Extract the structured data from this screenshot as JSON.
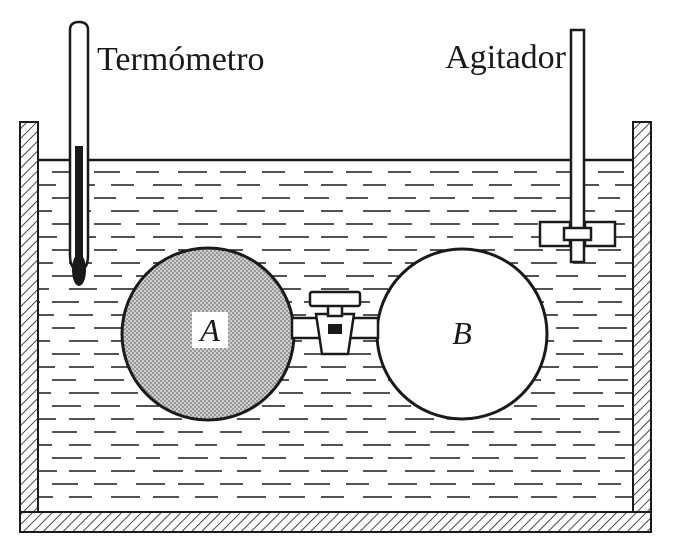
{
  "labels": {
    "thermometer": "Termómetro",
    "stirrer": "Agitador",
    "bulb_a": "A",
    "bulb_b": "B"
  },
  "colors": {
    "ink": "#1a1a1a",
    "paper": "#ffffff",
    "gas_fill": "#bdbdbd"
  }
}
